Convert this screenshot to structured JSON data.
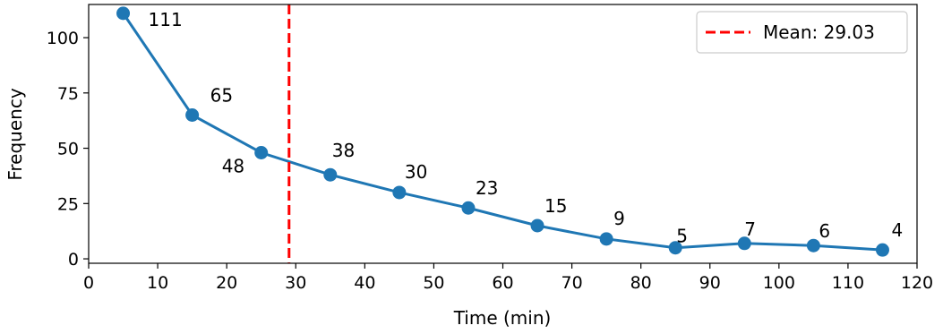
{
  "chart_data": {
    "type": "line",
    "title": "",
    "xlabel": "Time (min)",
    "ylabel": "Frequency",
    "xlim": [
      0,
      120
    ],
    "ylim": [
      -2,
      115
    ],
    "xticks": [
      0,
      10,
      20,
      30,
      40,
      50,
      60,
      70,
      80,
      90,
      100,
      110,
      120
    ],
    "yticks": [
      0,
      25,
      50,
      75,
      100
    ],
    "grid": false,
    "series": [
      {
        "color": "#1f77b4",
        "x": [
          5,
          15,
          25,
          35,
          45,
          55,
          65,
          75,
          85,
          95,
          105,
          115
        ],
        "y": [
          111,
          65,
          48,
          38,
          30,
          23,
          15,
          9,
          5,
          7,
          6,
          4
        ]
      }
    ],
    "mean_line": {
      "x": 29.03,
      "color": "#ff0000",
      "style": "dashed",
      "label": "Mean: 29.03"
    },
    "legend": {
      "position": "top-right"
    }
  }
}
